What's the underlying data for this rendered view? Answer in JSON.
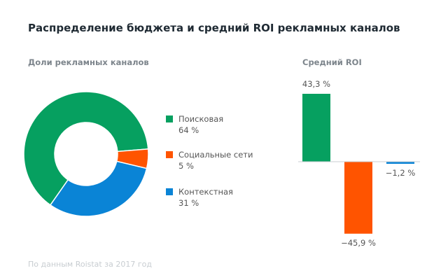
{
  "chart_data": [
    {
      "type": "pie",
      "donut": true,
      "title": "Доли рекламных каналов",
      "categories": [
        "Поисковая",
        "Социальные сети",
        "Контекстная"
      ],
      "values": [
        64,
        5,
        31
      ],
      "value_labels": [
        "64 %",
        "5 %",
        "31 %"
      ],
      "colors": [
        "#06a060",
        "#ff5400",
        "#0a84d6"
      ],
      "legend": "right"
    },
    {
      "type": "bar",
      "title": "Средний ROI",
      "categories": [
        "Поисковая",
        "Социальные сети",
        "Контекстная"
      ],
      "values": [
        43.3,
        -45.9,
        -1.2
      ],
      "value_labels": [
        "43,3 %",
        "−45,9 %",
        "−1,2 %"
      ],
      "colors": [
        "#06a060",
        "#ff5400",
        "#0a84d6"
      ]
    }
  ],
  "title": "Распределение бюджета и средний ROI рекламных каналов",
  "footnote": "По данным Roistat за 2017 год"
}
